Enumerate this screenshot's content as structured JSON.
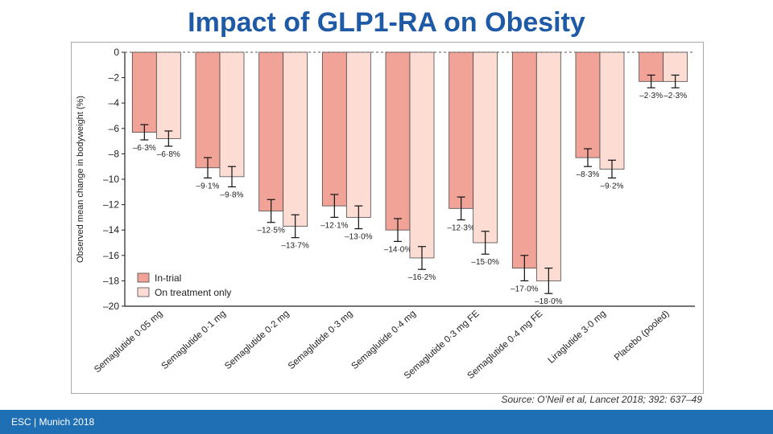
{
  "slide": {
    "title": "Impact of GLP1-RA on Obesity",
    "source": "Source: O’Neil et al, Lancet 2018; 392: 637–49",
    "footer": "ESC | Munich 2018"
  },
  "colors": {
    "title": "#1f5aa6",
    "footer_bar": "#1f6fb5",
    "in_trial": "#f0a396",
    "on_treatment": "#fcdcd3",
    "bar_stroke": "#4a4a4a"
  },
  "chart_data": {
    "type": "bar",
    "ylabel": "Observed mean change in bodyweight (%)",
    "ylim": [
      -20,
      0
    ],
    "yticks": [
      0,
      -2,
      -4,
      -6,
      -8,
      -10,
      -12,
      -14,
      -16,
      -18,
      -20
    ],
    "ytick_labels": [
      "0",
      "–2",
      "–4",
      "–6",
      "–8",
      "–10",
      "–12",
      "–14",
      "–16",
      "–18",
      "–20"
    ],
    "categories": [
      "Semaglutide 0·05 mg",
      "Semaglutide 0·1 mg",
      "Semaglutide 0·2 mg",
      "Semaglutide 0·3 mg",
      "Semaglutide 0·4 mg",
      "Semaglutide 0·3 mg FE",
      "Semaglutide 0·4 mg FE",
      "Liraglutide 3·0 mg",
      "Placebo (pooled)"
    ],
    "legend_position": "bottom-left",
    "series": [
      {
        "name": "In-trial",
        "color": "#f0a396",
        "values": [
          -6.3,
          -9.1,
          -12.5,
          -12.1,
          -14.0,
          -12.3,
          -17.0,
          -8.3,
          -2.3
        ],
        "labels": [
          "–6·3%",
          "–9·1%",
          "–12·5%",
          "–12·1%",
          "–14·0%",
          "–12·3%",
          "–17·0%",
          "–8·3%",
          "–2·3%"
        ],
        "error": [
          0.6,
          0.8,
          0.9,
          0.9,
          0.9,
          0.9,
          1.0,
          0.7,
          0.5
        ]
      },
      {
        "name": "On treatment only",
        "color": "#fcdcd3",
        "values": [
          -6.8,
          -9.8,
          -13.7,
          -13.0,
          -16.2,
          -15.0,
          -18.0,
          -9.2,
          -2.3
        ],
        "labels": [
          "–6·8%",
          "–9·8%",
          "–13·7%",
          "–13·0%",
          "–16·2%",
          "–15·0%",
          "–18·0%",
          "–9·2%",
          "–2·3%"
        ],
        "error": [
          0.6,
          0.8,
          0.9,
          0.9,
          0.9,
          0.9,
          1.0,
          0.7,
          0.5
        ]
      }
    ]
  }
}
